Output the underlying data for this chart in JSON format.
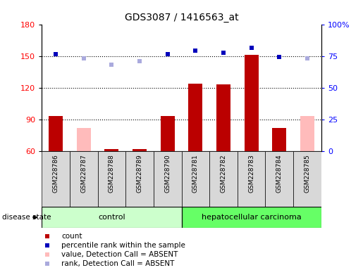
{
  "title": "GDS3087 / 1416563_at",
  "samples": [
    "GSM228786",
    "GSM228787",
    "GSM228788",
    "GSM228789",
    "GSM228790",
    "GSM228781",
    "GSM228782",
    "GSM228783",
    "GSM228784",
    "GSM228785"
  ],
  "count_values": [
    93,
    null,
    62,
    62,
    93,
    124,
    123,
    151,
    82,
    null
  ],
  "count_absent": [
    null,
    82,
    null,
    null,
    null,
    null,
    null,
    null,
    null,
    93
  ],
  "rank_values": [
    152,
    null,
    null,
    null,
    152,
    155,
    153,
    158,
    149,
    null
  ],
  "rank_absent": [
    null,
    148,
    142,
    145,
    null,
    null,
    null,
    null,
    null,
    148
  ],
  "ylim_left": [
    60,
    180
  ],
  "ylim_right": [
    0,
    100
  ],
  "yticks_left": [
    60,
    90,
    120,
    150,
    180
  ],
  "yticks_right": [
    0,
    25,
    50,
    75,
    100
  ],
  "ytick_labels_left": [
    "60",
    "90",
    "120",
    "150",
    "180"
  ],
  "ytick_labels_right": [
    "0",
    "25",
    "50",
    "75",
    "100%"
  ],
  "hline_values": [
    90,
    120,
    150
  ],
  "count_color": "#bb0000",
  "count_absent_color": "#ffbbbb",
  "rank_color": "#0000bb",
  "rank_absent_color": "#aaaadd",
  "control_bg": "#ccffcc",
  "carcinoma_bg": "#66ff66",
  "label_bg": "#d8d8d8",
  "disease_state_label": "disease state",
  "control_label": "control",
  "carcinoma_label": "hepatocellular carcinoma",
  "legend_items": [
    {
      "label": "count",
      "color": "#bb0000"
    },
    {
      "label": "percentile rank within the sample",
      "color": "#0000bb"
    },
    {
      "label": "value, Detection Call = ABSENT",
      "color": "#ffbbbb"
    },
    {
      "label": "rank, Detection Call = ABSENT",
      "color": "#aaaadd"
    }
  ]
}
